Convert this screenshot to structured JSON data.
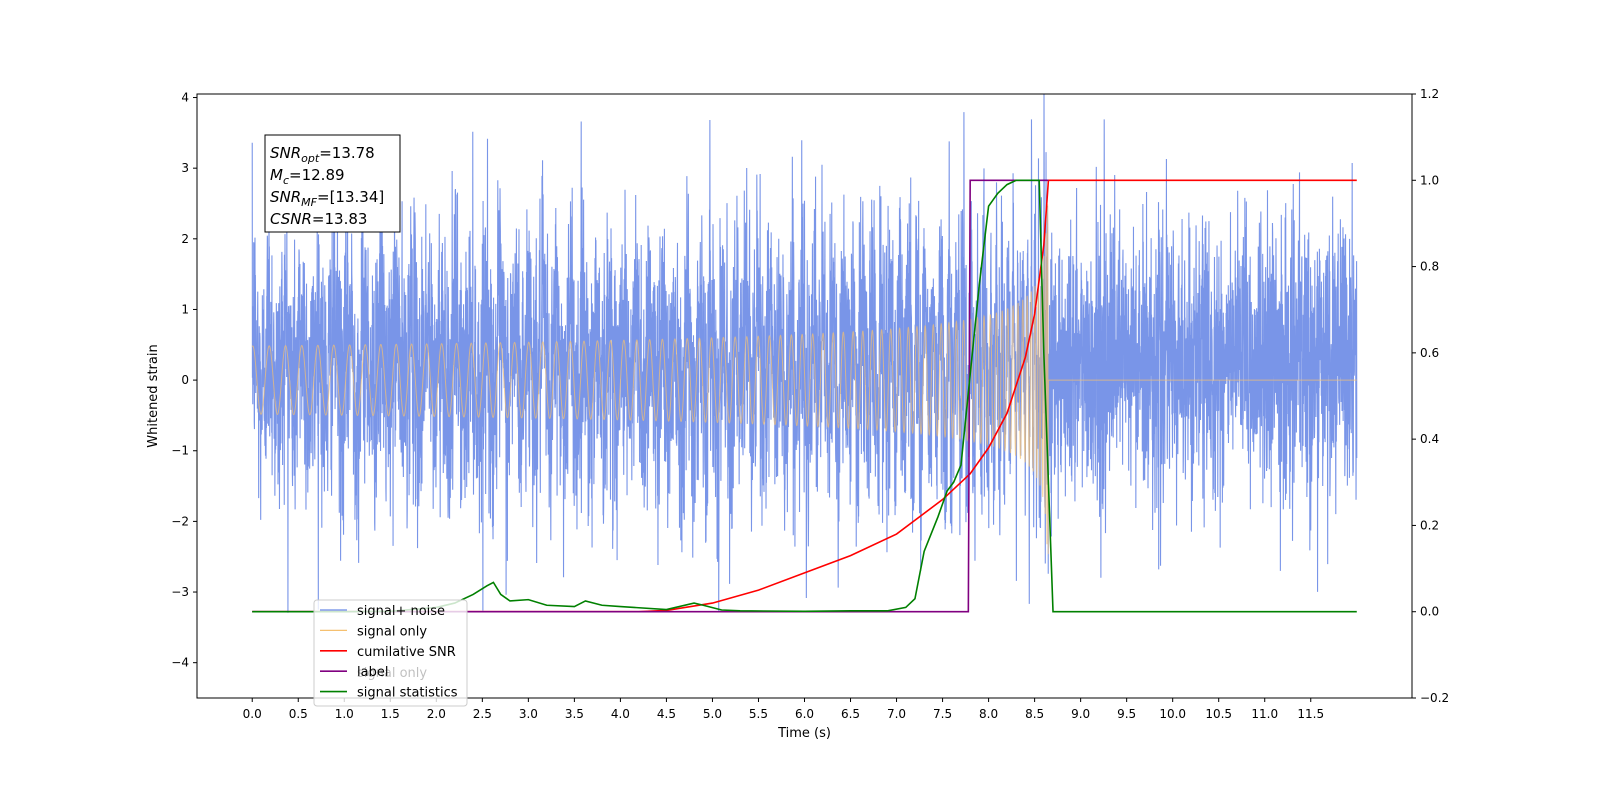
{
  "chart_data": {
    "type": "line",
    "title": "",
    "xlabel": "Time (s)",
    "ylabel": "Whitened strain",
    "xlim": [
      -0.6,
      12.6
    ],
    "ylim": [
      -4.5,
      4.05
    ],
    "y2lim": [
      -0.2,
      1.2
    ],
    "xticks": [
      "0.0",
      "0.5",
      "1.0",
      "1.5",
      "2.0",
      "2.5",
      "3.0",
      "3.5",
      "4.0",
      "4.5",
      "5.0",
      "5.5",
      "6.0",
      "6.5",
      "7.0",
      "7.5",
      "8.0",
      "8.5",
      "9.0",
      "9.5",
      "10.0",
      "10.5",
      "11.0",
      "11.5"
    ],
    "yticks": [
      "4",
      "3",
      "2",
      "1",
      "0",
      "−1",
      "−2",
      "−3",
      "−4"
    ],
    "y2ticks": [
      "1.2",
      "1.0",
      "0.8",
      "0.6",
      "0.4",
      "0.2",
      "0.0",
      "−0.2"
    ],
    "grid": false,
    "legend_position": "lower-left",
    "annotation": {
      "lines": [
        {
          "symbol": "SNR",
          "subscript": "opt",
          "value": "=13.78"
        },
        {
          "symbol": "M",
          "subscript": "c",
          "value": "=12.89"
        },
        {
          "symbol": "SNR",
          "subscript": "MF",
          "value": "=[13.34]"
        },
        {
          "symbol": "CSNR",
          "subscript": "",
          "value": "=13.83"
        }
      ]
    },
    "series": [
      {
        "name": "signal+ noise",
        "color": "#6a8ae6",
        "axis": "left",
        "x_range": [
          0.0,
          12.0
        ],
        "std": 0.95,
        "envelope_peak": 2.5,
        "merger_time": 8.65
      },
      {
        "name": "signal only",
        "color": "#f5c070",
        "axis": "left",
        "x_range": [
          0.0,
          12.0
        ],
        "envelope_peak": 2.5,
        "merger_time": 8.65
      },
      {
        "name": "cumilative SNR",
        "color": "#ff0000",
        "axis": "right",
        "x": [
          0.0,
          4.2,
          4.5,
          5.0,
          5.5,
          6.0,
          6.5,
          7.0,
          7.5,
          7.8,
          8.0,
          8.2,
          8.4,
          8.5,
          8.6,
          8.63,
          8.65,
          12.0
        ],
        "values": [
          0.0,
          0.0,
          0.003,
          0.02,
          0.05,
          0.09,
          0.13,
          0.18,
          0.26,
          0.32,
          0.38,
          0.46,
          0.59,
          0.69,
          0.85,
          0.94,
          1.0,
          1.0
        ]
      },
      {
        "name": "label",
        "color": "#800080",
        "axis": "right",
        "x": [
          0.0,
          7.78,
          7.8,
          8.65
        ],
        "values": [
          0.0,
          0.0,
          1.0,
          1.0
        ]
      },
      {
        "name": "signal statistics",
        "color": "#008000",
        "axis": "right",
        "x": [
          0.0,
          1.0,
          1.5,
          2.0,
          2.2,
          2.4,
          2.55,
          2.62,
          2.7,
          2.8,
          3.0,
          3.2,
          3.5,
          3.62,
          3.8,
          4.0,
          4.5,
          4.8,
          4.9,
          5.1,
          5.3,
          6.0,
          6.5,
          6.9,
          7.1,
          7.2,
          7.3,
          7.45,
          7.55,
          7.62,
          7.7,
          7.8,
          7.9,
          8.0,
          8.1,
          8.2,
          8.3,
          8.5,
          8.55,
          8.6,
          8.7,
          12.0
        ],
        "values": [
          0.0,
          0.0,
          0.001,
          0.01,
          0.02,
          0.04,
          0.06,
          0.068,
          0.04,
          0.025,
          0.028,
          0.015,
          0.012,
          0.025,
          0.015,
          0.012,
          0.005,
          0.02,
          0.015,
          0.004,
          0.002,
          0.001,
          0.002,
          0.002,
          0.01,
          0.03,
          0.14,
          0.22,
          0.28,
          0.3,
          0.34,
          0.55,
          0.76,
          0.94,
          0.97,
          0.99,
          1.0,
          1.0,
          1.0,
          0.6,
          0.0,
          0.0
        ]
      }
    ],
    "legend": [
      "signal+ noise",
      "signal only",
      "cumilative SNR",
      "label",
      "signal statistics"
    ],
    "legend_overlap_text": "signal only"
  }
}
